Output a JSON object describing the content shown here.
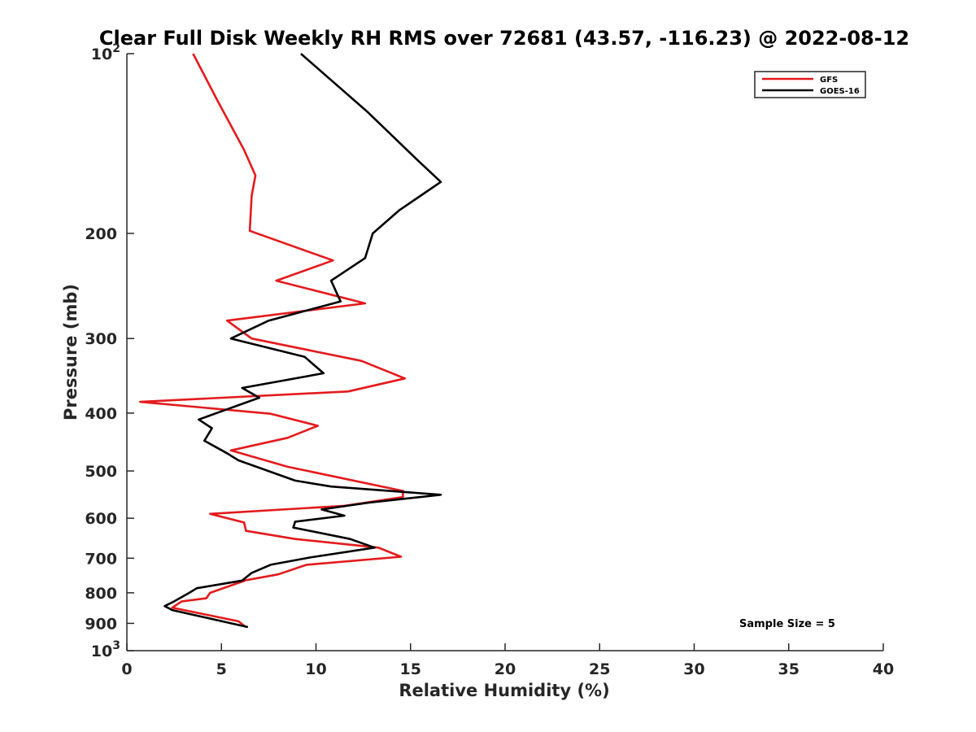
{
  "chart_data": {
    "type": "line",
    "title": "Clear Full Disk Weekly RH RMS over 72681 (43.57, -116.23) @ 2022-08-12",
    "xlabel": "Relative Humidity (%)",
    "ylabel": "Pressure (mb)",
    "xlim": [
      0,
      40
    ],
    "ylim": [
      100,
      1000
    ],
    "y_scale": "log",
    "y_reversed": true,
    "grid": false,
    "legend_position": "top-right",
    "x_ticks": [
      "0",
      "5",
      "10",
      "15",
      "20",
      "25",
      "30",
      "35",
      "40"
    ],
    "y_ticks": [
      {
        "value": 100,
        "label": "10",
        "sup": "2"
      },
      {
        "value": 200,
        "label": "200"
      },
      {
        "value": 300,
        "label": "300"
      },
      {
        "value": 400,
        "label": "400"
      },
      {
        "value": 500,
        "label": "500"
      },
      {
        "value": 600,
        "label": "600"
      },
      {
        "value": 700,
        "label": "700"
      },
      {
        "value": 800,
        "label": "800"
      },
      {
        "value": 900,
        "label": "900"
      },
      {
        "value": 1000,
        "label": "10",
        "sup": "3"
      }
    ],
    "annotation": "Sample Size = 5",
    "series": [
      {
        "name": "GFS",
        "color": "#e41a1c",
        "points": [
          [
            3.5,
            100
          ],
          [
            4.8,
            120
          ],
          [
            6.2,
            145
          ],
          [
            6.8,
            160
          ],
          [
            6.6,
            173
          ],
          [
            6.5,
            198
          ],
          [
            10.9,
            222
          ],
          [
            7.9,
            240
          ],
          [
            12.6,
            262
          ],
          [
            5.3,
            280
          ],
          [
            6.6,
            300
          ],
          [
            12.4,
            327
          ],
          [
            14.7,
            350
          ],
          [
            11.7,
            368
          ],
          [
            0.7,
            383
          ],
          [
            7.6,
            401
          ],
          [
            10.1,
            420
          ],
          [
            8.5,
            440
          ],
          [
            5.5,
            462
          ],
          [
            8.5,
            492
          ],
          [
            14.6,
            540
          ],
          [
            14.6,
            553
          ],
          [
            11.5,
            572
          ],
          [
            4.4,
            590
          ],
          [
            6.2,
            610
          ],
          [
            6.3,
            630
          ],
          [
            8.9,
            650
          ],
          [
            13.3,
            672
          ],
          [
            14.5,
            696
          ],
          [
            9.5,
            718
          ],
          [
            8.0,
            745
          ],
          [
            6.3,
            762
          ],
          [
            4.4,
            800
          ],
          [
            4.2,
            817
          ],
          [
            2.9,
            827
          ],
          [
            2.4,
            847
          ],
          [
            5.9,
            893
          ],
          [
            6.3,
            913
          ]
        ]
      },
      {
        "name": "GOES-16",
        "color": "#000000",
        "points": [
          [
            9.2,
            100
          ],
          [
            12.7,
            125
          ],
          [
            15.3,
            150
          ],
          [
            16.6,
            164
          ],
          [
            14.4,
            183
          ],
          [
            13.0,
            200
          ],
          [
            12.6,
            220
          ],
          [
            10.8,
            240
          ],
          [
            11.3,
            260
          ],
          [
            7.5,
            280
          ],
          [
            5.5,
            300
          ],
          [
            9.4,
            322
          ],
          [
            10.4,
            343
          ],
          [
            6.1,
            363
          ],
          [
            7.0,
            377
          ],
          [
            3.8,
            410
          ],
          [
            4.5,
            424
          ],
          [
            4.1,
            445
          ],
          [
            5.3,
            467
          ],
          [
            5.9,
            480
          ],
          [
            8.9,
            519
          ],
          [
            10.8,
            531
          ],
          [
            16.6,
            548
          ],
          [
            12.8,
            565
          ],
          [
            10.3,
            580
          ],
          [
            11.5,
            594
          ],
          [
            8.9,
            608
          ],
          [
            8.8,
            622
          ],
          [
            11.8,
            650
          ],
          [
            13.1,
            672
          ],
          [
            9.7,
            698
          ],
          [
            7.6,
            718
          ],
          [
            6.6,
            741
          ],
          [
            6.1,
            763
          ],
          [
            3.7,
            786
          ],
          [
            3.3,
            800
          ],
          [
            2.5,
            827
          ],
          [
            2.0,
            842
          ],
          [
            2.4,
            855
          ],
          [
            6.4,
            913
          ]
        ]
      }
    ]
  }
}
